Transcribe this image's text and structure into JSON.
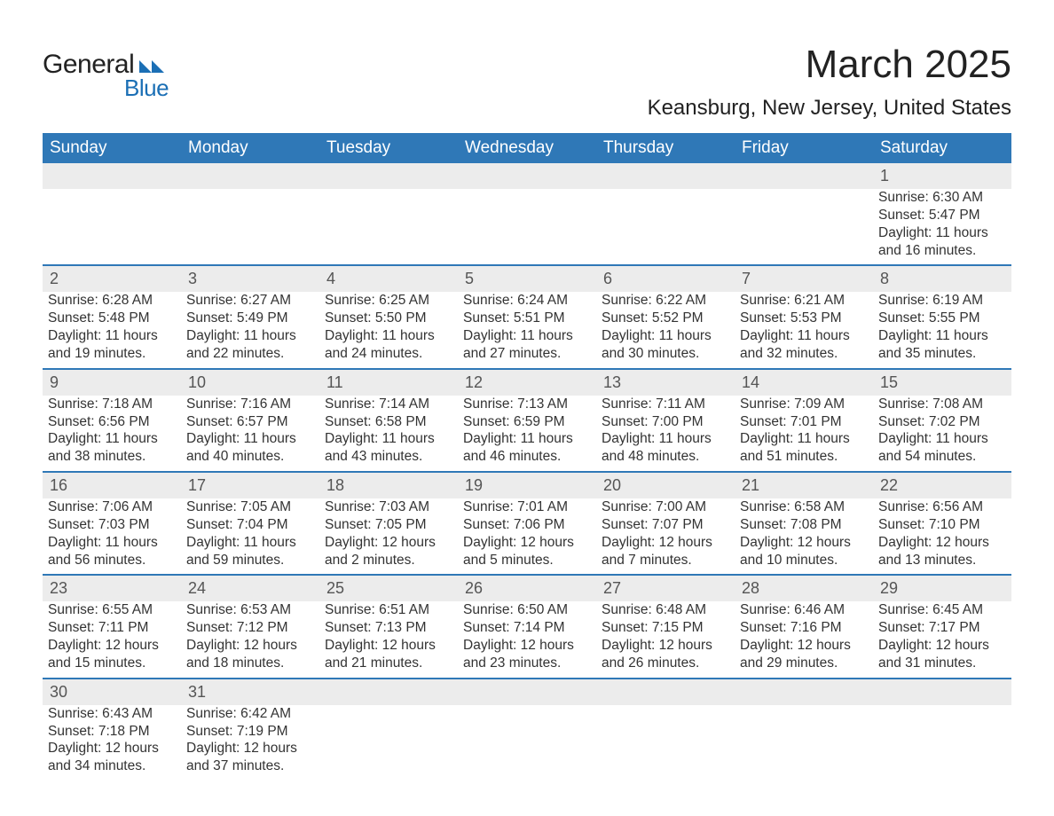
{
  "logo": {
    "text1": "General",
    "text2": "Blue",
    "brand_color": "#1b6fb5",
    "text_color": "#222222"
  },
  "title": "March 2025",
  "location": "Keansburg, New Jersey, United States",
  "colors": {
    "header_bg": "#2f78b7",
    "header_text": "#ffffff",
    "daynum_bg": "#ececec",
    "daynum_text": "#555555",
    "body_text": "#333333",
    "row_border": "#2f78b7",
    "page_bg": "#ffffff"
  },
  "fonts": {
    "title_size_pt": 33,
    "location_size_pt": 18,
    "weekday_size_pt": 14,
    "daynum_size_pt": 13,
    "body_size_pt": 11.5,
    "family": "Arial"
  },
  "weekdays": [
    "Sunday",
    "Monday",
    "Tuesday",
    "Wednesday",
    "Thursday",
    "Friday",
    "Saturday"
  ],
  "weeks": [
    [
      null,
      null,
      null,
      null,
      null,
      null,
      {
        "day": "1",
        "sunrise": "Sunrise: 6:30 AM",
        "sunset": "Sunset: 5:47 PM",
        "daylight1": "Daylight: 11 hours",
        "daylight2": "and 16 minutes."
      }
    ],
    [
      {
        "day": "2",
        "sunrise": "Sunrise: 6:28 AM",
        "sunset": "Sunset: 5:48 PM",
        "daylight1": "Daylight: 11 hours",
        "daylight2": "and 19 minutes."
      },
      {
        "day": "3",
        "sunrise": "Sunrise: 6:27 AM",
        "sunset": "Sunset: 5:49 PM",
        "daylight1": "Daylight: 11 hours",
        "daylight2": "and 22 minutes."
      },
      {
        "day": "4",
        "sunrise": "Sunrise: 6:25 AM",
        "sunset": "Sunset: 5:50 PM",
        "daylight1": "Daylight: 11 hours",
        "daylight2": "and 24 minutes."
      },
      {
        "day": "5",
        "sunrise": "Sunrise: 6:24 AM",
        "sunset": "Sunset: 5:51 PM",
        "daylight1": "Daylight: 11 hours",
        "daylight2": "and 27 minutes."
      },
      {
        "day": "6",
        "sunrise": "Sunrise: 6:22 AM",
        "sunset": "Sunset: 5:52 PM",
        "daylight1": "Daylight: 11 hours",
        "daylight2": "and 30 minutes."
      },
      {
        "day": "7",
        "sunrise": "Sunrise: 6:21 AM",
        "sunset": "Sunset: 5:53 PM",
        "daylight1": "Daylight: 11 hours",
        "daylight2": "and 32 minutes."
      },
      {
        "day": "8",
        "sunrise": "Sunrise: 6:19 AM",
        "sunset": "Sunset: 5:55 PM",
        "daylight1": "Daylight: 11 hours",
        "daylight2": "and 35 minutes."
      }
    ],
    [
      {
        "day": "9",
        "sunrise": "Sunrise: 7:18 AM",
        "sunset": "Sunset: 6:56 PM",
        "daylight1": "Daylight: 11 hours",
        "daylight2": "and 38 minutes."
      },
      {
        "day": "10",
        "sunrise": "Sunrise: 7:16 AM",
        "sunset": "Sunset: 6:57 PM",
        "daylight1": "Daylight: 11 hours",
        "daylight2": "and 40 minutes."
      },
      {
        "day": "11",
        "sunrise": "Sunrise: 7:14 AM",
        "sunset": "Sunset: 6:58 PM",
        "daylight1": "Daylight: 11 hours",
        "daylight2": "and 43 minutes."
      },
      {
        "day": "12",
        "sunrise": "Sunrise: 7:13 AM",
        "sunset": "Sunset: 6:59 PM",
        "daylight1": "Daylight: 11 hours",
        "daylight2": "and 46 minutes."
      },
      {
        "day": "13",
        "sunrise": "Sunrise: 7:11 AM",
        "sunset": "Sunset: 7:00 PM",
        "daylight1": "Daylight: 11 hours",
        "daylight2": "and 48 minutes."
      },
      {
        "day": "14",
        "sunrise": "Sunrise: 7:09 AM",
        "sunset": "Sunset: 7:01 PM",
        "daylight1": "Daylight: 11 hours",
        "daylight2": "and 51 minutes."
      },
      {
        "day": "15",
        "sunrise": "Sunrise: 7:08 AM",
        "sunset": "Sunset: 7:02 PM",
        "daylight1": "Daylight: 11 hours",
        "daylight2": "and 54 minutes."
      }
    ],
    [
      {
        "day": "16",
        "sunrise": "Sunrise: 7:06 AM",
        "sunset": "Sunset: 7:03 PM",
        "daylight1": "Daylight: 11 hours",
        "daylight2": "and 56 minutes."
      },
      {
        "day": "17",
        "sunrise": "Sunrise: 7:05 AM",
        "sunset": "Sunset: 7:04 PM",
        "daylight1": "Daylight: 11 hours",
        "daylight2": "and 59 minutes."
      },
      {
        "day": "18",
        "sunrise": "Sunrise: 7:03 AM",
        "sunset": "Sunset: 7:05 PM",
        "daylight1": "Daylight: 12 hours",
        "daylight2": "and 2 minutes."
      },
      {
        "day": "19",
        "sunrise": "Sunrise: 7:01 AM",
        "sunset": "Sunset: 7:06 PM",
        "daylight1": "Daylight: 12 hours",
        "daylight2": "and 5 minutes."
      },
      {
        "day": "20",
        "sunrise": "Sunrise: 7:00 AM",
        "sunset": "Sunset: 7:07 PM",
        "daylight1": "Daylight: 12 hours",
        "daylight2": "and 7 minutes."
      },
      {
        "day": "21",
        "sunrise": "Sunrise: 6:58 AM",
        "sunset": "Sunset: 7:08 PM",
        "daylight1": "Daylight: 12 hours",
        "daylight2": "and 10 minutes."
      },
      {
        "day": "22",
        "sunrise": "Sunrise: 6:56 AM",
        "sunset": "Sunset: 7:10 PM",
        "daylight1": "Daylight: 12 hours",
        "daylight2": "and 13 minutes."
      }
    ],
    [
      {
        "day": "23",
        "sunrise": "Sunrise: 6:55 AM",
        "sunset": "Sunset: 7:11 PM",
        "daylight1": "Daylight: 12 hours",
        "daylight2": "and 15 minutes."
      },
      {
        "day": "24",
        "sunrise": "Sunrise: 6:53 AM",
        "sunset": "Sunset: 7:12 PM",
        "daylight1": "Daylight: 12 hours",
        "daylight2": "and 18 minutes."
      },
      {
        "day": "25",
        "sunrise": "Sunrise: 6:51 AM",
        "sunset": "Sunset: 7:13 PM",
        "daylight1": "Daylight: 12 hours",
        "daylight2": "and 21 minutes."
      },
      {
        "day": "26",
        "sunrise": "Sunrise: 6:50 AM",
        "sunset": "Sunset: 7:14 PM",
        "daylight1": "Daylight: 12 hours",
        "daylight2": "and 23 minutes."
      },
      {
        "day": "27",
        "sunrise": "Sunrise: 6:48 AM",
        "sunset": "Sunset: 7:15 PM",
        "daylight1": "Daylight: 12 hours",
        "daylight2": "and 26 minutes."
      },
      {
        "day": "28",
        "sunrise": "Sunrise: 6:46 AM",
        "sunset": "Sunset: 7:16 PM",
        "daylight1": "Daylight: 12 hours",
        "daylight2": "and 29 minutes."
      },
      {
        "day": "29",
        "sunrise": "Sunrise: 6:45 AM",
        "sunset": "Sunset: 7:17 PM",
        "daylight1": "Daylight: 12 hours",
        "daylight2": "and 31 minutes."
      }
    ],
    [
      {
        "day": "30",
        "sunrise": "Sunrise: 6:43 AM",
        "sunset": "Sunset: 7:18 PM",
        "daylight1": "Daylight: 12 hours",
        "daylight2": "and 34 minutes."
      },
      {
        "day": "31",
        "sunrise": "Sunrise: 6:42 AM",
        "sunset": "Sunset: 7:19 PM",
        "daylight1": "Daylight: 12 hours",
        "daylight2": "and 37 minutes."
      },
      null,
      null,
      null,
      null,
      null
    ]
  ]
}
